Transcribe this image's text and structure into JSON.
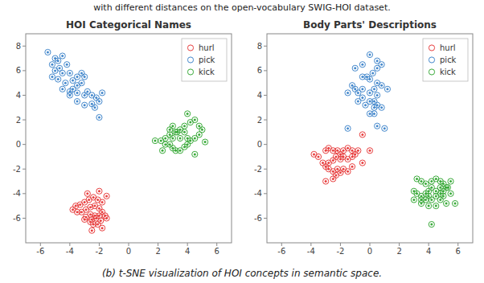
{
  "chart_data": [
    {
      "type": "scatter",
      "title": "HOI Categorical Names",
      "annotations": [
        "with different distances on the open-vocabulary SWIG-HOI dataset.",
        "(b) t-SNE visualization of HOI concepts in semantic space."
      ],
      "xlim": [
        -7,
        7
      ],
      "ylim": [
        -8,
        9
      ],
      "xticks": [
        -6,
        -4,
        -2,
        0,
        2,
        4,
        6
      ],
      "yticks": [
        -6,
        -4,
        -2,
        0,
        2,
        4,
        6,
        8
      ],
      "grid": false,
      "legend": "upper right",
      "series": [
        {
          "name": "hurl",
          "color": "#e84040",
          "x": [
            -1.8,
            -2.1,
            -2.4,
            -2.7,
            -3.0,
            -3.3,
            -3.6,
            -3.8,
            -3.5,
            -3.2,
            -2.9,
            -2.6,
            -2.3,
            -2.0,
            -1.8,
            -2.0,
            -2.3,
            -2.6,
            -2.9,
            -2.5,
            -2.2,
            -1.9,
            -2.1,
            -2.4,
            -2.6,
            -1.6,
            -1.5,
            -3.0,
            -2.0,
            -1.5,
            -2.8,
            -1.8,
            -2.5
          ],
          "values": [
            -4.7,
            -4.5,
            -4.3,
            -4.5,
            -4.7,
            -4.9,
            -5.0,
            -5.3,
            -5.5,
            -5.5,
            -5.3,
            -5.1,
            -5.0,
            -5.2,
            -5.5,
            -5.8,
            -5.8,
            -5.7,
            -5.9,
            -6.1,
            -6.0,
            -6.2,
            -6.5,
            -6.5,
            -6.3,
            -5.8,
            -6.0,
            -6.1,
            -3.8,
            -4.2,
            -4.0,
            -6.8,
            -7.0
          ]
        },
        {
          "name": "pick",
          "color": "#4488cc",
          "x": [
            -5.5,
            -5.0,
            -4.5,
            -4.8,
            -5.2,
            -4.2,
            -4.7,
            -5.0,
            -4.5,
            -4.0,
            -5.2,
            -4.8,
            -4.3,
            -3.8,
            -3.5,
            -3.2,
            -3.0,
            -3.2,
            -3.5,
            -3.8,
            -4.0,
            -3.5,
            -3.0,
            -2.8,
            -2.5,
            -2.2,
            -2.0,
            -2.5,
            -3.0,
            -3.5,
            -4.0,
            -4.5,
            -2.3,
            -1.8,
            -2.0
          ],
          "values": [
            7.5,
            7.0,
            7.2,
            6.8,
            6.5,
            6.5,
            6.2,
            6.0,
            5.8,
            5.8,
            5.5,
            5.3,
            5.0,
            5.2,
            5.5,
            5.8,
            5.5,
            5.0,
            4.8,
            4.5,
            4.3,
            4.2,
            4.0,
            4.3,
            4.0,
            3.8,
            3.5,
            3.3,
            3.2,
            3.5,
            4.0,
            4.5,
            3.0,
            4.2,
            2.2
          ]
        },
        {
          "name": "kick",
          "color": "#3aaa3a",
          "x": [
            1.8,
            2.2,
            2.5,
            2.8,
            3.2,
            3.5,
            3.8,
            4.2,
            4.5,
            4.8,
            5.0,
            4.8,
            4.5,
            4.2,
            4.0,
            3.8,
            3.5,
            3.2,
            3.0,
            2.8,
            2.5,
            3.0,
            3.5,
            4.0,
            3.8,
            3.3,
            2.8,
            4.5,
            5.2,
            4.0,
            2.3,
            3.0
          ],
          "values": [
            0.3,
            0.3,
            0.5,
            0.8,
            1.0,
            1.2,
            1.5,
            1.8,
            2.0,
            1.5,
            1.2,
            0.8,
            0.5,
            0.3,
            0.0,
            -0.2,
            -0.5,
            -0.5,
            -0.3,
            0.0,
            0.0,
            0.5,
            0.5,
            0.5,
            1.0,
            1.0,
            1.2,
            -0.8,
            0.2,
            2.5,
            -0.5,
            1.5
          ]
        }
      ]
    },
    {
      "type": "scatter",
      "title": "Body Parts' Descriptions",
      "xlim": [
        -7,
        7
      ],
      "ylim": [
        -8,
        9
      ],
      "xticks": [
        -6,
        -4,
        -2,
        0,
        2,
        4,
        6
      ],
      "yticks": [
        -6,
        -4,
        -2,
        0,
        2,
        4,
        6,
        8
      ],
      "grid": false,
      "legend": "upper right",
      "series": [
        {
          "name": "hurl",
          "color": "#e84040",
          "x": [
            -3.0,
            -2.8,
            -2.5,
            -2.2,
            -2.0,
            -1.8,
            -1.5,
            -1.2,
            -1.0,
            -0.8,
            -1.2,
            -1.5,
            -1.8,
            -2.0,
            -2.3,
            -2.5,
            -2.8,
            -3.0,
            -3.2,
            -2.8,
            -2.5,
            -2.2,
            -2.0,
            -1.8,
            -1.5,
            -1.2,
            -3.5,
            -3.8,
            -2.3,
            -3.0,
            0.0,
            -0.5,
            -0.5,
            -2.5
          ],
          "values": [
            -0.5,
            -0.3,
            -0.5,
            -0.5,
            -0.8,
            -0.5,
            -0.3,
            -0.5,
            -0.8,
            -0.5,
            -1.0,
            -1.2,
            -1.0,
            -1.2,
            -1.0,
            -1.3,
            -1.5,
            -1.8,
            -1.5,
            -2.0,
            -2.2,
            -2.0,
            -2.3,
            -2.0,
            -2.2,
            -1.8,
            -1.0,
            -0.8,
            -2.5,
            -3.0,
            -0.5,
            0.8,
            -1.5,
            -2.8
          ]
        },
        {
          "name": "pick",
          "color": "#4488cc",
          "x": [
            -1.0,
            -0.5,
            0.0,
            0.5,
            0.8,
            0.5,
            0.2,
            -0.2,
            -0.5,
            0.0,
            0.5,
            0.8,
            0.3,
            0.0,
            0.5,
            0.3,
            0.5,
            0.8,
            0.3,
            0.0,
            -0.3,
            -0.5,
            -0.8,
            -0.5,
            -1.0,
            -1.2,
            -1.5,
            0.0,
            0.3,
            -0.8,
            1.0,
            1.2,
            -1.5,
            0.5
          ],
          "values": [
            6.2,
            6.5,
            7.3,
            6.8,
            6.5,
            6.2,
            5.8,
            5.5,
            5.5,
            5.3,
            5.0,
            4.8,
            4.5,
            4.2,
            4.0,
            3.5,
            3.2,
            3.0,
            3.0,
            2.5,
            3.2,
            4.5,
            4.2,
            3.8,
            4.5,
            4.8,
            4.2,
            3.5,
            2.5,
            3.5,
            1.3,
            4.5,
            1.3,
            1.5
          ]
        },
        {
          "name": "kick",
          "color": "#3aaa3a",
          "x": [
            3.2,
            3.5,
            3.8,
            4.2,
            4.5,
            4.8,
            5.0,
            5.2,
            5.5,
            5.3,
            5.0,
            4.8,
            4.5,
            4.2,
            4.0,
            3.8,
            3.5,
            3.2,
            3.0,
            3.5,
            3.8,
            4.0,
            4.2,
            4.5,
            4.8,
            5.0,
            5.2,
            4.5,
            4.0,
            3.5,
            5.5,
            3.0,
            4.8,
            4.2,
            5.8
          ],
          "values": [
            -2.8,
            -3.0,
            -3.2,
            -3.0,
            -2.8,
            -3.0,
            -3.2,
            -3.5,
            -3.0,
            -3.5,
            -3.8,
            -3.5,
            -3.8,
            -3.5,
            -3.8,
            -4.0,
            -4.2,
            -4.0,
            -3.8,
            -4.5,
            -4.5,
            -4.2,
            -4.5,
            -4.2,
            -4.5,
            -4.2,
            -4.8,
            -5.0,
            -5.0,
            -4.8,
            -4.0,
            -4.5,
            -4.0,
            -6.5,
            -4.8
          ]
        }
      ]
    }
  ]
}
